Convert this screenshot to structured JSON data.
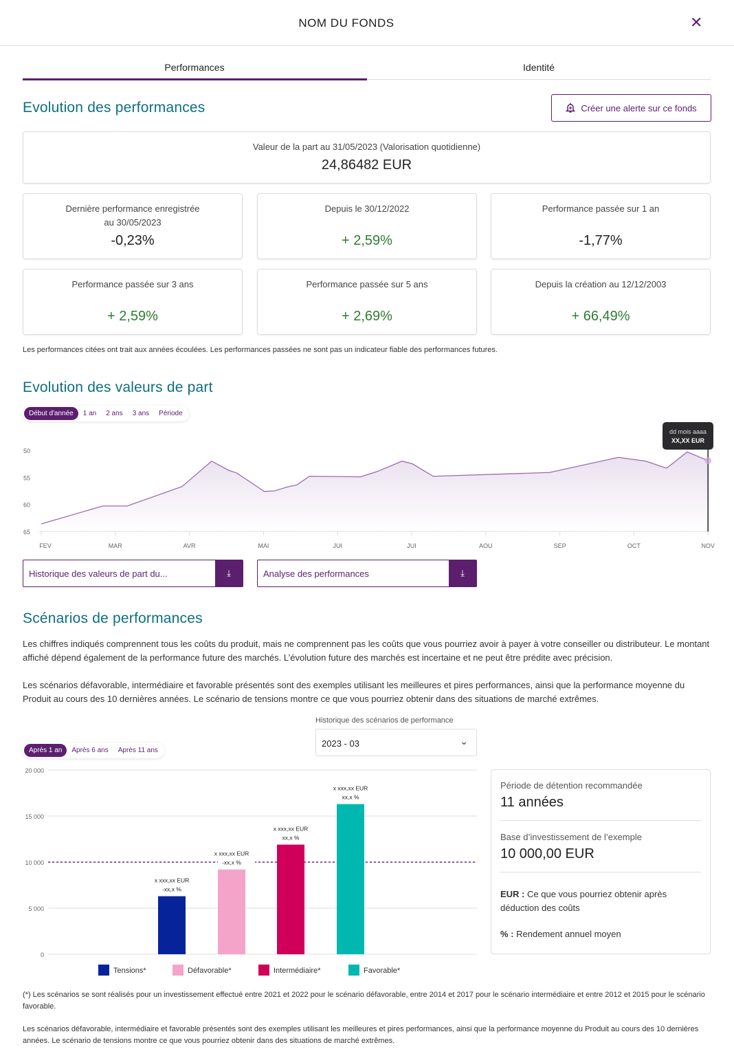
{
  "header": {
    "title": "NOM DU FONDS",
    "close_icon": "close-icon"
  },
  "tabs": [
    {
      "label": "Performances",
      "active": true
    },
    {
      "label": "Identité",
      "active": false
    }
  ],
  "performances": {
    "title": "Evolution des performances",
    "alert_button": "Créer une alerte sur ce fonds",
    "valuation": {
      "label": "Valeur de la part au 31/05/2023 (Valorisation quotidienne)",
      "value": "24,86482 EUR"
    },
    "cards": [
      {
        "label1": "Dernière performance enregistrée",
        "label2": "au 30/05/2023",
        "value": "-0,23%",
        "positive": false
      },
      {
        "label1": "Depuis le 30/12/2022",
        "label2": "",
        "value": "+ 2,59%",
        "positive": true
      },
      {
        "label1": "Performance passée sur 1 an",
        "label2": "",
        "value": "-1,77%",
        "positive": false
      },
      {
        "label1": "Performance passée sur 3 ans",
        "label2": "",
        "value": "+ 2,59%",
        "positive": true
      },
      {
        "label1": "Performance passée sur 5 ans",
        "label2": "",
        "value": "+ 2,69%",
        "positive": true
      },
      {
        "label1": "Depuis la création au 12/12/2003",
        "label2": "",
        "value": "+ 66,49%",
        "positive": true
      }
    ],
    "note": "Les performances citées ont trait aux années écoulées. Les performances passées ne sont pas un indicateur fiable des performances futures."
  },
  "values": {
    "title": "Evolution des valeurs de part",
    "periods": [
      "Début d'année",
      "1 an",
      "2 ans",
      "3 ans",
      "Période"
    ],
    "active_period": 0,
    "tooltip": {
      "date": "dd mois aaaa",
      "value": "XX,XX EUR"
    },
    "downloads": [
      "Historique des valeurs de part du...",
      "Analyse des performances"
    ]
  },
  "scenarios": {
    "title": "Scénarios de performances",
    "p1": "Les chiffres indiqués comprennent tous les coûts du produit, mais ne comprennent pas les coûts que vous pourriez avoir à payer à votre conseiller ou distributeur. Le montant affiché dépend également de la performance future des marchés. L’évolution future des marchés est incertaine et ne peut être prédite avec précision.",
    "p2": "Les scénarios défavorable, intermédiaire et favorable présentés sont des exemples utilisant les meilleures et pires performances, ainsi que la performance moyenne du Produit au cours des 10 dernières années. Le scénario de tensions montre ce que vous pourriez obtenir dans des situations de marché extrêmes.",
    "periods": [
      "Après 1 an",
      "Après 6 ans",
      "Après 11 ans"
    ],
    "active_period": 0,
    "history_label": "Historique des scénarios de performance",
    "history_value": "2023 - 03",
    "side": {
      "period_label": "Période de détention recommandée",
      "period_value": "11 années",
      "base_label": "Base d’investissement de l’exemple",
      "base_value": "10 000,00 EUR",
      "eur_key": "EUR :",
      "eur_text": " Ce que vous pourriez obtenir après déduction des coûts",
      "pct_key": "% :",
      "pct_text": " Rendement annuel moyen"
    },
    "footnote": "(*) Les scénarios se sont réalisés pour un investissement effectué entre 2021 et 2022 pour le scénario défavorable, entre 2014 et 2017 pour le scénario intermédiaire et entre 2012 et 2015 pour le scénario favorable.",
    "p3": "Les scénarios défavorable, intermédiaire et favorable présentés sont des exemples utilisant les meilleures et pires performances, ainsi que la performance moyenne du Produit au cours des 10 dernières années. Le scénario de tensions montre ce que vous pourriez obtenir dans des situations de marché extrêmes."
  },
  "chart_data": [
    {
      "type": "area",
      "categories": [
        "FEV",
        "MAR",
        "AVR",
        "MAI",
        "JUI",
        "JUI",
        "AOU",
        "SEP",
        "OCT",
        "NOV"
      ],
      "yticks": [
        50,
        55,
        60,
        65
      ],
      "ylim": [
        50,
        65
      ],
      "y_inverted": true,
      "color": "#9b6bb0",
      "x": [
        0,
        0.83,
        1.16,
        1.9,
        2.3,
        2.53,
        2.64,
        3.01,
        3.15,
        3.34,
        3.45,
        3.62,
        4.31,
        4.54,
        4.87,
        5.01,
        5.29,
        6.86,
        7.79,
        8.16,
        8.44,
        8.72,
        9.0
      ],
      "y": [
        63.6,
        60.3,
        60.3,
        56.7,
        52.0,
        53.7,
        54.2,
        57.6,
        57.5,
        56.7,
        56.4,
        54.8,
        54.9,
        53.9,
        52.0,
        52.5,
        54.8,
        54.1,
        51.3,
        52.0,
        53.3,
        50.3,
        51.9
      ]
    },
    {
      "type": "bar",
      "ylim": [
        0,
        20000
      ],
      "yticks": [
        "0",
        "5 000",
        "10 000",
        "15 000",
        "20 000"
      ],
      "reference_line": 10000,
      "series": [
        {
          "name": "Tensions*",
          "value": 6300,
          "color": "#06239a",
          "label1": "x xxx,xx EUR",
          "label2": "-xx,x %"
        },
        {
          "name": "Défavorable*",
          "value": 9200,
          "color": "#f4a4c8",
          "label1": "x xxx,xx EUR",
          "label2": "-xx,x %"
        },
        {
          "name": "Intermédiaire*",
          "value": 11900,
          "color": "#d0005a",
          "label1": "x xxx,xx EUR",
          "label2": "xx,x %"
        },
        {
          "name": "Favorable*",
          "value": 16300,
          "color": "#00b8b0",
          "label1": "x xxx,xx EUR",
          "label2": "xx,x %"
        }
      ]
    }
  ]
}
